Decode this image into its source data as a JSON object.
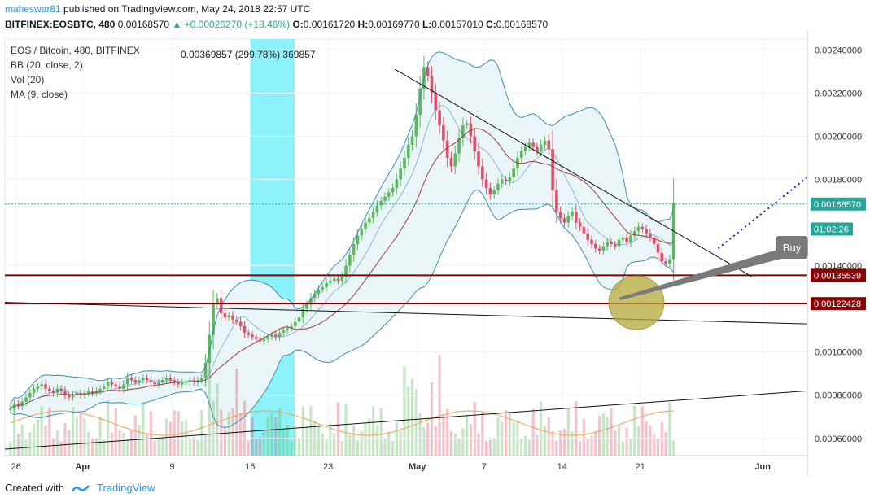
{
  "header": {
    "user": "maheswar81",
    "published": "published on TradingView.com, May 24, 2018 22:57 UTC",
    "symbol": "BITFINEX:EOSBTC, 480",
    "last": "0.00168570",
    "change": "▲ +0.00026270 (+18.46%)",
    "o_label": "O:",
    "o": "0.00161720",
    "h_label": "H:",
    "h": "0.00169770",
    "l_label": "L:",
    "l": "0.00157010",
    "c_label": "C:",
    "c": "0.00168570"
  },
  "legend": {
    "title": "EOS / Bitcoin, 480, BITFINEX",
    "bb": "BB (20, close, 2)",
    "vol": "Vol (20)",
    "ma": "MA (9, close)"
  },
  "measure_label": "0.00369857 (299.78%) 369857",
  "annotation": {
    "buy_label": "Buy"
  },
  "footer": {
    "created_with": "Created with",
    "brand": "TradingView"
  },
  "colors": {
    "up": "#5cb85c",
    "down": "#e0506a",
    "bb": "#3a8fb3",
    "bb_fill": "#eaf5f7",
    "ma": "#9c3b3b",
    "level": "#8b0000",
    "highlight": "#7ff0f7",
    "circle": "#b5a93a",
    "arrow": "#7a7a7a",
    "dotted": "#1a1adb",
    "price_tag": "#26a69a"
  },
  "chart_data": {
    "type": "candlestick",
    "y_axis": {
      "ticks": [
        "0.00240000",
        "0.00220000",
        "0.00200000",
        "0.00180000",
        "0.00140000",
        "0.00100000",
        "0.00080000",
        "0.00060000"
      ],
      "ylim": [
        0.00052,
        0.00245
      ]
    },
    "x_axis": {
      "ticks": [
        "26",
        "Apr",
        "9",
        "16",
        "23",
        "May",
        "7",
        "14",
        "21",
        "Jun"
      ],
      "dates": [
        "2018-03-26",
        "2018-04-01",
        "2018-04-09",
        "2018-04-16",
        "2018-04-23",
        "2018-05-01",
        "2018-05-07",
        "2018-05-14",
        "2018-05-21",
        "2018-06-01"
      ],
      "range": [
        "2018-03-25",
        "2018-06-05"
      ]
    },
    "price_tags": [
      {
        "label": "0.00168570",
        "value": 0.0016857,
        "kind": "last"
      },
      {
        "label": "01:02:26",
        "value": 0.00157,
        "kind": "countdown"
      },
      {
        "label": "0.00135539",
        "value": 0.00135539,
        "kind": "level"
      },
      {
        "label": "0.00122428",
        "value": 0.00122428,
        "kind": "level"
      }
    ],
    "horizontal_levels": [
      0.00135539,
      0.00122428
    ],
    "highlight_range": [
      "2018-04-16",
      "2018-04-20"
    ],
    "trendlines": [
      {
        "from": [
          "2018-04-29",
          0.00231
        ],
        "to": [
          "2018-05-31",
          0.00135
        ]
      },
      {
        "from": [
          "2018-03-25",
          0.00123
        ],
        "to": [
          "2018-06-05",
          0.00113
        ]
      },
      {
        "from": [
          "2018-03-25",
          0.00055
        ],
        "to": [
          "2018-06-05",
          0.00082
        ]
      }
    ],
    "projection_line": {
      "from": [
        "2018-05-28",
        0.00148
      ],
      "to": [
        "2018-06-05",
        0.00181
      ]
    },
    "closes": [
      0.00074,
      0.00076,
      0.00075,
      0.00077,
      0.00079,
      0.00081,
      0.00083,
      0.00084,
      0.00085,
      0.00083,
      0.00082,
      0.00081,
      0.00083,
      0.00082,
      0.0008,
      0.00079,
      0.0008,
      0.00081,
      0.0008,
      0.00081,
      0.00082,
      0.00081,
      0.00082,
      0.00083,
      0.00084,
      0.00086,
      0.00085,
      0.00084,
      0.00083,
      0.00085,
      0.00088,
      0.00087,
      0.00086,
      0.00087,
      0.00088,
      0.00087,
      0.00086,
      0.00085,
      0.00086,
      0.00087,
      0.00088,
      0.00087,
      0.00086,
      0.00085,
      0.00086,
      0.00086,
      0.00087,
      0.00086,
      0.00087,
      0.00088,
      0.00095,
      0.00108,
      0.00122,
      0.00125,
      0.00118,
      0.00116,
      0.00117,
      0.00115,
      0.00114,
      0.00112,
      0.00109,
      0.00108,
      0.00107,
      0.00106,
      0.00105,
      0.00106,
      0.00107,
      0.00108,
      0.00107,
      0.00109,
      0.0011,
      0.00111,
      0.00112,
      0.00114,
      0.00116,
      0.0012,
      0.00122,
      0.00125,
      0.00127,
      0.00129,
      0.0013,
      0.00132,
      0.00133,
      0.00134,
      0.00133,
      0.00135,
      0.0014,
      0.00145,
      0.0015,
      0.00154,
      0.00157,
      0.0016,
      0.00162,
      0.00165,
      0.00168,
      0.0017,
      0.00172,
      0.00174,
      0.00176,
      0.0018,
      0.00185,
      0.0019,
      0.00196,
      0.002,
      0.0021,
      0.00222,
      0.00232,
      0.00228,
      0.0022,
      0.00212,
      0.00205,
      0.00198,
      0.0019,
      0.00186,
      0.00192,
      0.00199,
      0.00205,
      0.00206,
      0.002,
      0.00193,
      0.00186,
      0.0018,
      0.00176,
      0.00173,
      0.00175,
      0.00178,
      0.0018,
      0.00179,
      0.00181,
      0.00185,
      0.0019,
      0.00193,
      0.00195,
      0.00197,
      0.00195,
      0.00193,
      0.00196,
      0.00198,
      0.00194,
      0.00175,
      0.00165,
      0.00162,
      0.0016,
      0.00163,
      0.00165,
      0.0016,
      0.00158,
      0.00155,
      0.00152,
      0.0015,
      0.00148,
      0.00147,
      0.00149,
      0.00151,
      0.0015,
      0.00149,
      0.00152,
      0.00153,
      0.00151,
      0.00154,
      0.00156,
      0.00158,
      0.00157,
      0.00155,
      0.00153,
      0.0015,
      0.00146,
      0.00142,
      0.00141,
      0.00143,
      0.00169
    ],
    "volume_max_label": "",
    "series": [
      {
        "name": "EOS / Bitcoin",
        "kind": "candles"
      },
      {
        "name": "BB (20, close, 2)",
        "kind": "band"
      },
      {
        "name": "MA (9, close)",
        "kind": "line"
      },
      {
        "name": "Vol (20)",
        "kind": "volume"
      }
    ]
  }
}
